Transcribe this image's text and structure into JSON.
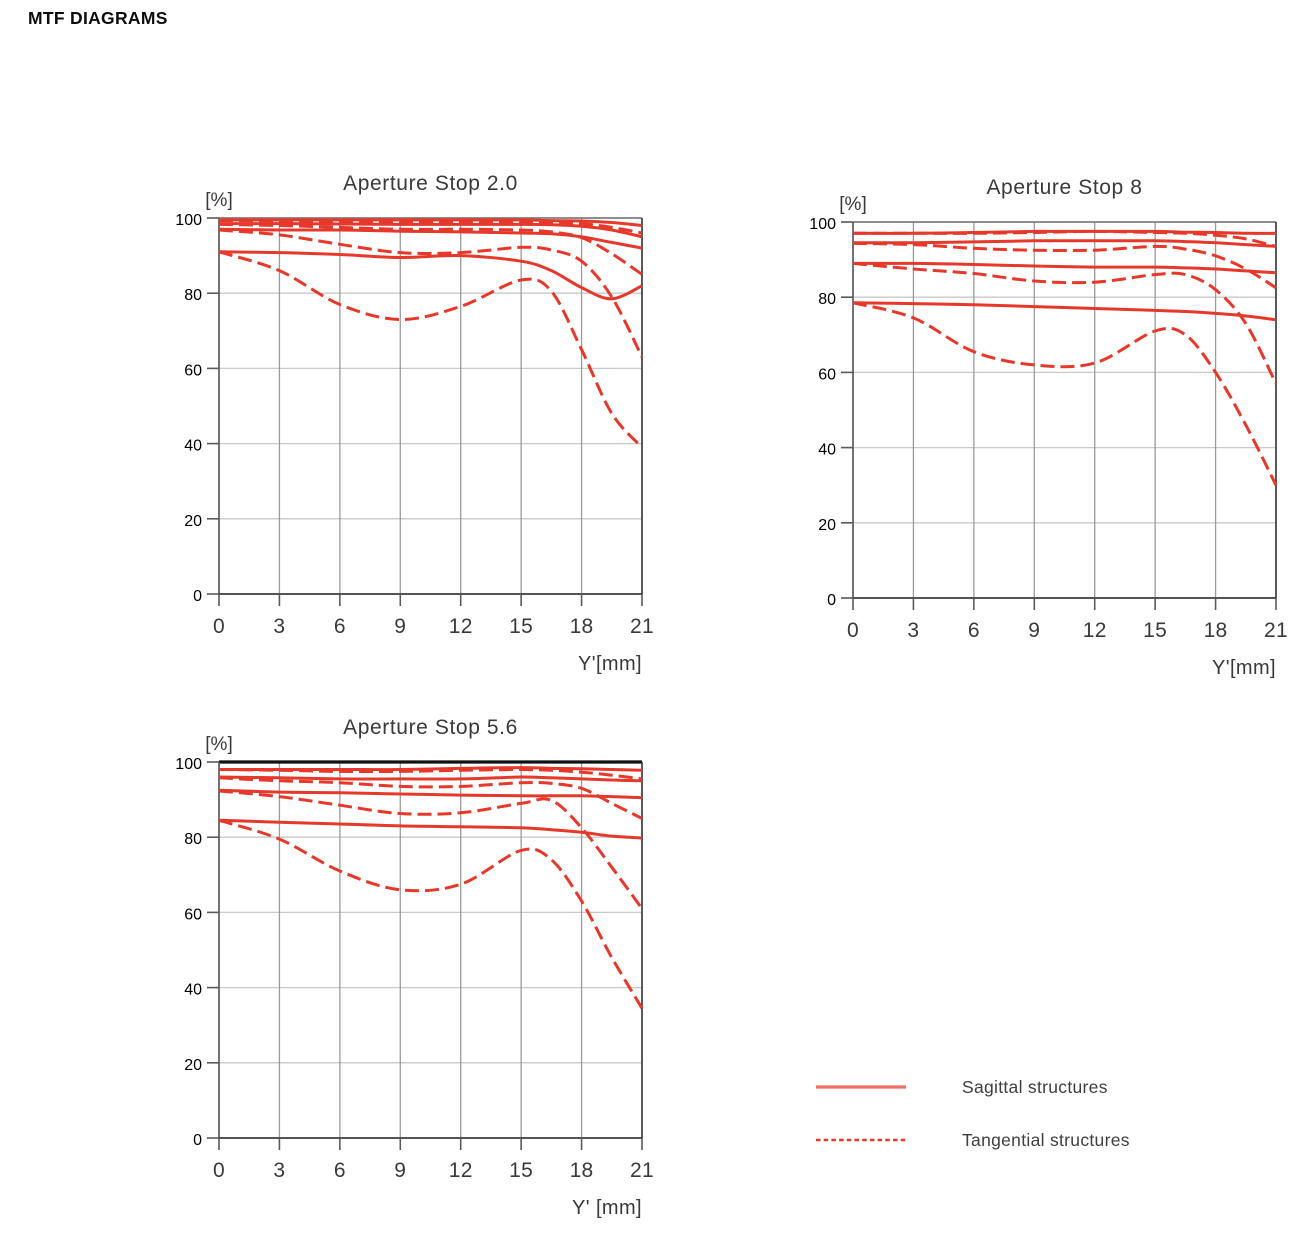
{
  "page_title": "MTF DIAGRAMS",
  "colors": {
    "curve_red": "#e6392b",
    "legend_solid_red": "#ee7164",
    "grid_vertical": "#9b9b9b",
    "grid_horizontal": "#c9c9c9",
    "axis_gray": "#5a5a5a",
    "frame_dark": "#3c3c3c",
    "frame_top_gray": "#7e7e7e",
    "frame_top_black": "#111111",
    "label_text": "#3a3a3a"
  },
  "legend": {
    "items": [
      {
        "label": "Sagittal structures",
        "style": "solid"
      },
      {
        "label": "Tangential structures",
        "style": "dashed"
      }
    ]
  },
  "chart_data": [
    {
      "type": "line",
      "title": "Aperture Stop 2.0",
      "ylabel": "[%]",
      "xlabel": "Y'[mm]",
      "xlim": [
        0,
        21
      ],
      "ylim": [
        0,
        100
      ],
      "xticks": [
        0,
        3,
        6,
        9,
        12,
        15,
        18,
        21
      ],
      "yticks": [
        0,
        20,
        40,
        60,
        80,
        100
      ],
      "grid": true,
      "top_frame": "gray",
      "x": [
        0,
        3,
        6,
        9,
        12,
        15,
        16.5,
        18,
        19.5,
        21
      ],
      "series": [
        {
          "name": "sagittal-curve-1",
          "style": "solid",
          "values": [
            99.5,
            99.5,
            99.5,
            99.5,
            99.5,
            99.5,
            99.3,
            99.2,
            98.8,
            98
          ]
        },
        {
          "name": "sagittal-curve-2",
          "style": "solid",
          "values": [
            98.5,
            98.5,
            98.4,
            98.3,
            98.3,
            98.3,
            98.2,
            97.8,
            96.8,
            95
          ]
        },
        {
          "name": "sagittal-curve-3",
          "style": "solid",
          "values": [
            97,
            96.8,
            96.8,
            96.5,
            96.3,
            96,
            95.8,
            95,
            93.5,
            92
          ]
        },
        {
          "name": "sagittal-curve-4",
          "style": "solid",
          "values": [
            91,
            90.8,
            90.3,
            89.5,
            90,
            88.5,
            86,
            81.5,
            78.5,
            82
          ]
        },
        {
          "name": "tangential-curve-1",
          "style": "dashed",
          "values": [
            99.3,
            99.2,
            99,
            99,
            99,
            99,
            98.8,
            98.5,
            97.5,
            96
          ]
        },
        {
          "name": "tangential-curve-2",
          "style": "dashed",
          "values": [
            98.3,
            98,
            97.5,
            97,
            97,
            96.8,
            96.3,
            94.8,
            90.5,
            85
          ]
        },
        {
          "name": "tangential-curve-3",
          "style": "dashed",
          "values": [
            96.8,
            95.5,
            93,
            90.8,
            90.8,
            92.2,
            91.5,
            88.5,
            79,
            63
          ]
        },
        {
          "name": "tangential-curve-4",
          "style": "dashed",
          "values": [
            91,
            86,
            77,
            73,
            76.5,
            83.5,
            80.5,
            65,
            48,
            39
          ]
        }
      ]
    },
    {
      "type": "line",
      "title": "Aperture Stop 8",
      "ylabel": "[%]",
      "xlabel": "Y'[mm]",
      "xlim": [
        0,
        21
      ],
      "ylim": [
        0,
        100
      ],
      "xticks": [
        0,
        3,
        6,
        9,
        12,
        15,
        18,
        21
      ],
      "yticks": [
        0,
        20,
        40,
        60,
        80,
        100
      ],
      "grid": true,
      "top_frame": "gray",
      "x": [
        0,
        3,
        6,
        9,
        12,
        15,
        16.5,
        18,
        19.5,
        21
      ],
      "series": [
        {
          "name": "sagittal-curve-1",
          "style": "solid",
          "values": [
            97,
            97,
            97.2,
            97.5,
            97.5,
            97.5,
            97.3,
            97.2,
            97,
            97
          ]
        },
        {
          "name": "sagittal-curve-2",
          "style": "solid",
          "values": [
            94.5,
            94.5,
            94.7,
            95,
            95,
            95,
            94.8,
            94.5,
            94,
            93.5
          ]
        },
        {
          "name": "sagittal-curve-3",
          "style": "solid",
          "values": [
            89,
            89,
            88.7,
            88.3,
            88,
            88,
            87.8,
            87.5,
            87,
            86.5
          ]
        },
        {
          "name": "sagittal-curve-4",
          "style": "solid",
          "values": [
            78.5,
            78.3,
            78,
            77.5,
            77,
            76.5,
            76.2,
            75.7,
            75,
            74
          ]
        },
        {
          "name": "tangential-curve-1",
          "style": "dashed",
          "values": [
            97,
            97,
            97,
            97.2,
            97.5,
            97.2,
            97,
            96.5,
            95.5,
            93.5
          ]
        },
        {
          "name": "tangential-curve-2",
          "style": "dashed",
          "values": [
            94.3,
            94,
            93,
            92.5,
            92.5,
            93.5,
            92.8,
            91,
            87.5,
            82.5
          ]
        },
        {
          "name": "tangential-curve-3",
          "style": "dashed",
          "values": [
            89,
            87.5,
            86.3,
            84.3,
            84,
            86,
            86,
            82,
            73,
            57
          ]
        },
        {
          "name": "tangential-curve-4",
          "style": "dashed",
          "values": [
            78.5,
            74.5,
            65.5,
            62,
            62.5,
            71,
            70,
            60,
            46,
            30
          ]
        }
      ]
    },
    {
      "type": "line",
      "title": "Aperture Stop 5.6",
      "ylabel": "[%]",
      "xlabel": "Y' [mm]",
      "xlim": [
        0,
        21
      ],
      "ylim": [
        0,
        100
      ],
      "xticks": [
        0,
        3,
        6,
        9,
        12,
        15,
        18,
        21
      ],
      "yticks": [
        0,
        20,
        40,
        60,
        80,
        100
      ],
      "grid": true,
      "top_frame": "black",
      "x": [
        0,
        3,
        6,
        9,
        12,
        15,
        16.5,
        18,
        19.5,
        21
      ],
      "series": [
        {
          "name": "sagittal-curve-1",
          "style": "solid",
          "values": [
            98,
            98,
            98,
            98,
            98.3,
            98.5,
            98.3,
            98.2,
            98,
            97.8
          ]
        },
        {
          "name": "sagittal-curve-2",
          "style": "solid",
          "values": [
            96,
            95.8,
            95.5,
            95.5,
            95.5,
            96,
            95.8,
            95.5,
            95.2,
            95
          ]
        },
        {
          "name": "sagittal-curve-3",
          "style": "solid",
          "values": [
            92.5,
            92,
            91.8,
            91.5,
            91.2,
            91,
            91,
            91,
            90.8,
            90.5
          ]
        },
        {
          "name": "sagittal-curve-4",
          "style": "solid",
          "values": [
            84.5,
            84,
            83.5,
            83,
            82.8,
            82.5,
            82,
            81.3,
            80.3,
            79.8
          ]
        },
        {
          "name": "tangential-curve-1",
          "style": "dashed",
          "values": [
            98,
            97.8,
            97.5,
            97.5,
            97.8,
            98,
            97.8,
            97.3,
            96.5,
            95.5
          ]
        },
        {
          "name": "tangential-curve-2",
          "style": "dashed",
          "values": [
            95.8,
            95,
            94.5,
            93.5,
            93.5,
            94.5,
            94.3,
            93,
            89,
            85
          ]
        },
        {
          "name": "tangential-curve-3",
          "style": "dashed",
          "values": [
            92.3,
            90.8,
            88.5,
            86.3,
            86.5,
            89,
            89.8,
            82.5,
            72,
            61
          ]
        },
        {
          "name": "tangential-curve-4",
          "style": "dashed",
          "values": [
            84.5,
            79.5,
            71,
            66,
            67.5,
            76.5,
            74,
            63,
            48,
            34.5
          ]
        }
      ]
    }
  ]
}
